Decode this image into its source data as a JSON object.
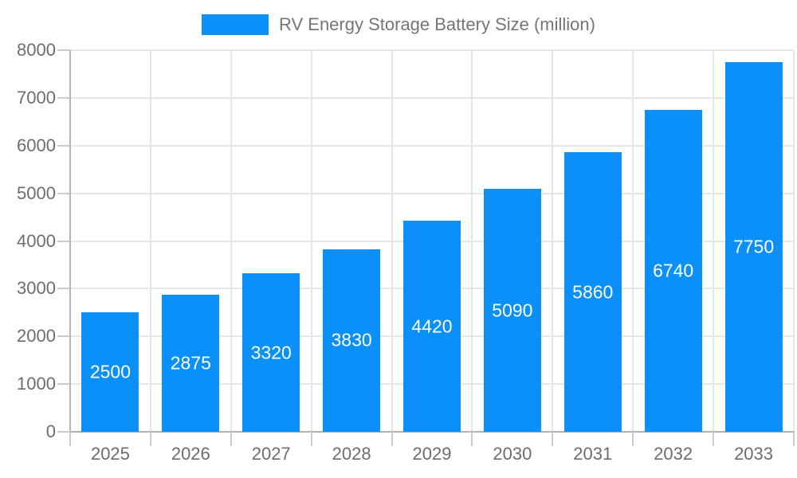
{
  "legend": {
    "label": "RV Energy Storage Battery Size (million)"
  },
  "colors": {
    "bar": "#0a90f8",
    "bar_label": "#ffffff",
    "legend_text": "#757575",
    "axis_text": "#6d6d6d",
    "grid": "#e6e6e6",
    "axis_line": "#b3b3b3",
    "tick": "#cccccc",
    "background": "#ffffff"
  },
  "chart_data": {
    "type": "bar",
    "title": "RV Energy Storage Battery Size (million)",
    "categories": [
      "2025",
      "2026",
      "2027",
      "2028",
      "2029",
      "2030",
      "2031",
      "2032",
      "2033"
    ],
    "values": [
      2500,
      2875,
      3320,
      3830,
      4420,
      5090,
      5860,
      6740,
      7750
    ],
    "xlabel": "",
    "ylabel": "",
    "ylim": [
      0,
      8000
    ],
    "ytick_step": 1000,
    "ytick_labels": [
      "0",
      "1000",
      "2000",
      "3000",
      "4000",
      "5000",
      "6000",
      "7000",
      "8000"
    ],
    "grid": true,
    "legend_position": "top",
    "bar_value_labels_inside": true
  }
}
